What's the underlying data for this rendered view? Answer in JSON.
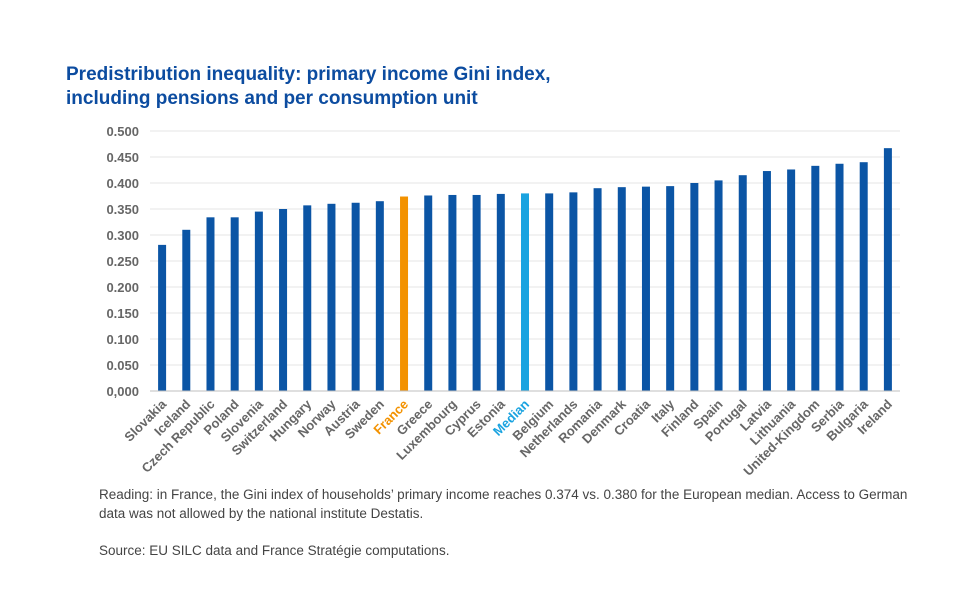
{
  "chart_data": {
    "type": "bar",
    "title": "Predistribution inequality: primary income Gini index,",
    "title_line2": "including pensions and per consumption unit",
    "xlabel": "",
    "ylabel": "",
    "ylim": [
      0,
      0.5
    ],
    "yticks": [
      {
        "value": 0.5,
        "label": "0.500"
      },
      {
        "value": 0.45,
        "label": "0.450"
      },
      {
        "value": 0.4,
        "label": "0.400"
      },
      {
        "value": 0.35,
        "label": "0.350"
      },
      {
        "value": 0.3,
        "label": "0.300"
      },
      {
        "value": 0.25,
        "label": "0.250"
      },
      {
        "value": 0.2,
        "label": "0.200"
      },
      {
        "value": 0.15,
        "label": "0.150"
      },
      {
        "value": 0.1,
        "label": "0.100"
      },
      {
        "value": 0.05,
        "label": "0.050"
      },
      {
        "value": 0.0,
        "label": "0,000"
      }
    ],
    "categories": [
      "Slovakia",
      "Iceland",
      "Czech Republic",
      "Poland",
      "Slovenia",
      "Switzerland",
      "Hungary",
      "Norway",
      "Austria",
      "Sweden",
      "France",
      "Greece",
      "Luxembourg",
      "Cyprus",
      "Estonia",
      "Median",
      "Belgium",
      "Netherlands",
      "Romania",
      "Denmark",
      "Croatia",
      "Italy",
      "Finland",
      "Spain",
      "Portugal",
      "Latvia",
      "Lithuania",
      "United-Kingdom",
      "Serbia",
      "Bulgaria",
      "Ireland"
    ],
    "values": [
      0.281,
      0.31,
      0.334,
      0.334,
      0.345,
      0.35,
      0.357,
      0.36,
      0.362,
      0.365,
      0.374,
      0.376,
      0.377,
      0.377,
      0.379,
      0.38,
      0.38,
      0.382,
      0.39,
      0.392,
      0.393,
      0.394,
      0.4,
      0.405,
      0.415,
      0.423,
      0.426,
      0.433,
      0.437,
      0.44,
      0.467
    ],
    "highlights": {
      "France": "#f39200",
      "Median": "#1aa3e0"
    }
  },
  "colors": {
    "bar": "#0b55a5",
    "france": "#f39200",
    "median": "#1aa3e0",
    "title": "#0c4ca0",
    "grid": "#e6e6e6",
    "axis_text": "#666666"
  },
  "notes": {
    "reading": "Reading: in France, the Gini index of households’ primary income reaches 0.374 vs. 0.380 for the European median. Access to German data was not allowed by the national institute Destatis.",
    "source": "Source: EU SILC data and France Stratégie computations."
  }
}
